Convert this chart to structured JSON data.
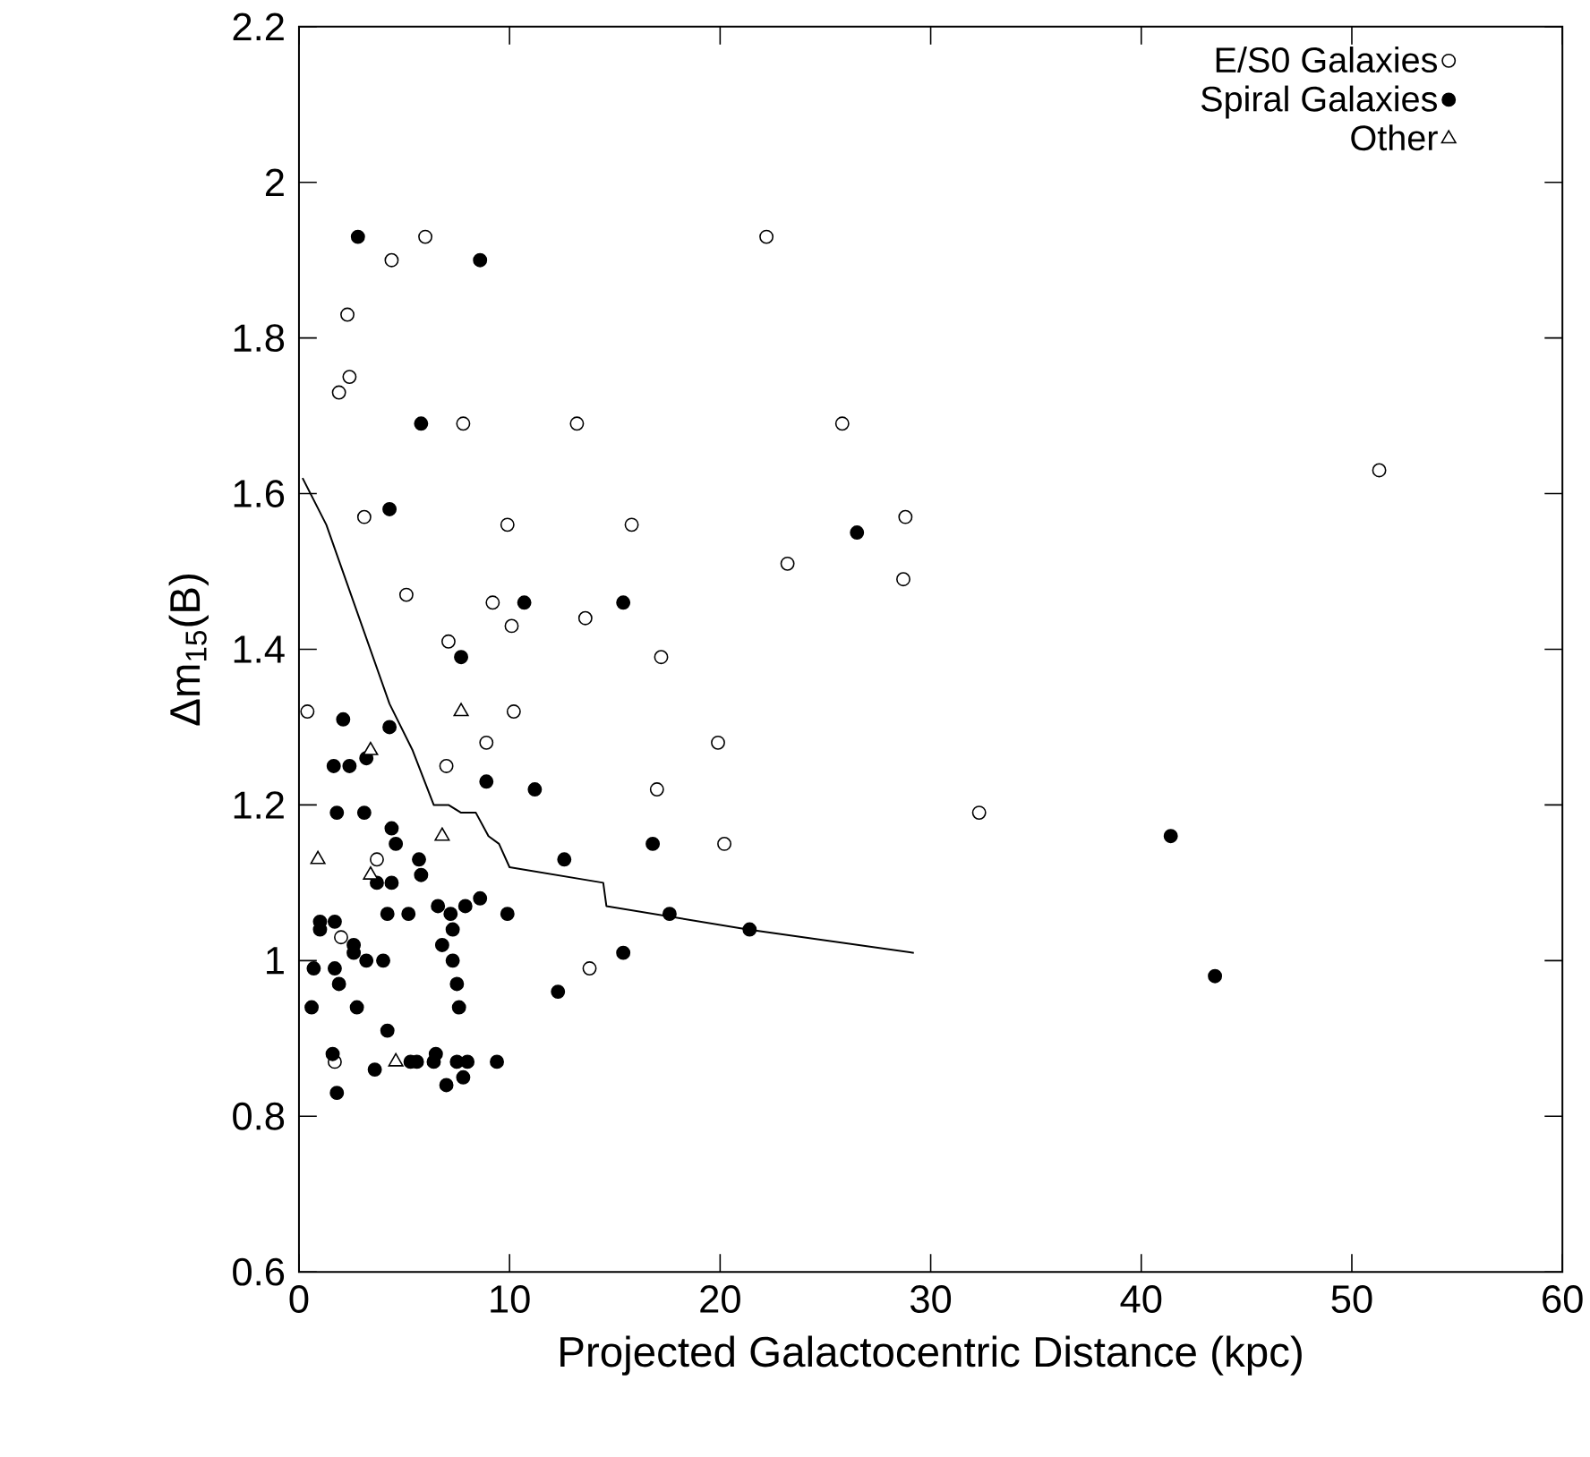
{
  "chart_data": {
    "type": "scatter",
    "xlabel": "Projected Galactocentric Distance (kpc)",
    "ylabel": "Δm$_{15}$(B)",
    "xlim": [
      0,
      60
    ],
    "ylim": [
      0.6,
      2.2
    ],
    "xticks": [
      0,
      10,
      20,
      30,
      40,
      50,
      60
    ],
    "yticks": [
      0.6,
      0.8,
      1,
      1.2,
      1.4,
      1.6,
      1.8,
      2,
      2.2
    ],
    "legend": "top right",
    "grid": false,
    "series": [
      {
        "name": "E/S0 Galaxies",
        "color": "#ffffff",
        "marker": "circle",
        "x": [
          6.0,
          4.4,
          2.3,
          2.4,
          1.9,
          7.8,
          13.2,
          3.1,
          9.9,
          15.8,
          5.1,
          9.2,
          10.1,
          13.6,
          7.1,
          17.2,
          0.4,
          10.2,
          8.9,
          7.0,
          3.7,
          2.0,
          1.7,
          22.2,
          25.8,
          51.3,
          28.8,
          23.2,
          28.7,
          19.9,
          17.0,
          20.2,
          32.3,
          13.8
        ],
        "values": [
          1.93,
          1.9,
          1.83,
          1.75,
          1.73,
          1.69,
          1.69,
          1.57,
          1.56,
          1.56,
          1.47,
          1.46,
          1.43,
          1.44,
          1.41,
          1.39,
          1.32,
          1.32,
          1.28,
          1.25,
          1.13,
          1.03,
          0.87,
          1.93,
          1.69,
          1.63,
          1.57,
          1.51,
          1.49,
          1.28,
          1.22,
          1.15,
          1.19,
          0.99
        ]
      },
      {
        "name": "Spiral Galaxies",
        "color": "#000000",
        "marker": "circle",
        "x": [
          2.8,
          8.6,
          5.8,
          4.3,
          10.7,
          15.4,
          7.7,
          2.1,
          4.3,
          26.5,
          16.8,
          41.4,
          17.6,
          21.4,
          43.5,
          1.65,
          2.4,
          3.2,
          8.9,
          11.2,
          1.8,
          3.1,
          4.4,
          4.6,
          5.7,
          5.8,
          12.6,
          3.7,
          4.4,
          4.2,
          5.2,
          6.6,
          7.2,
          7.9,
          8.6,
          9.9,
          7.3,
          6.8,
          1.0,
          1.7,
          1.0,
          2.6,
          2.6,
          3.2,
          4.0,
          7.3,
          0.7,
          1.7,
          1.9,
          7.5,
          7.6,
          0.6,
          2.75,
          12.3,
          15.4,
          4.2,
          1.6,
          3.6,
          5.3,
          5.6,
          6.4,
          6.5,
          7.5,
          8.0,
          9.4,
          7.0,
          7.8,
          1.8
        ],
        "values": [
          1.93,
          1.9,
          1.69,
          1.58,
          1.46,
          1.46,
          1.39,
          1.31,
          1.3,
          1.55,
          1.15,
          1.16,
          1.06,
          1.04,
          0.98,
          1.25,
          1.25,
          1.26,
          1.23,
          1.22,
          1.19,
          1.19,
          1.17,
          1.15,
          1.13,
          1.11,
          1.13,
          1.1,
          1.1,
          1.06,
          1.06,
          1.07,
          1.06,
          1.07,
          1.08,
          1.06,
          1.04,
          1.02,
          1.05,
          1.05,
          1.04,
          1.02,
          1.01,
          1.0,
          1.0,
          1.0,
          0.99,
          0.99,
          0.97,
          0.97,
          0.94,
          0.94,
          0.94,
          0.96,
          1.01,
          0.91,
          0.88,
          0.86,
          0.87,
          0.87,
          0.87,
          0.88,
          0.87,
          0.87,
          0.87,
          0.84,
          0.85,
          0.83
        ]
      },
      {
        "name": "Other",
        "color": "#ffffff",
        "marker": "triangle",
        "x": [
          7.7,
          3.4,
          6.8,
          0.9,
          3.4,
          4.6
        ],
        "values": [
          1.32,
          1.27,
          1.16,
          1.13,
          1.11,
          0.87
        ]
      },
      {
        "type": "line",
        "color": "#000000",
        "marker": "none",
        "x": [
          0.17,
          1.3,
          4.3,
          5.4,
          6.4,
          7.1,
          7.7,
          8.4,
          9.0,
          9.5,
          10.0,
          14.45,
          14.6,
          21.3,
          29.2
        ],
        "values": [
          1.62,
          1.56,
          1.33,
          1.27,
          1.2,
          1.2,
          1.19,
          1.19,
          1.16,
          1.15,
          1.12,
          1.1,
          1.07,
          1.04,
          1.01
        ]
      }
    ]
  }
}
